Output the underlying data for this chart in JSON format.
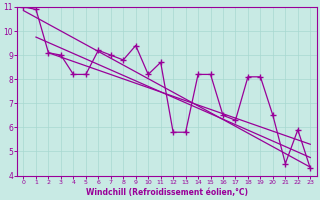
{
  "xlabel": "Windchill (Refroidissement éolien,°C)",
  "xlim": [
    -0.5,
    23.5
  ],
  "ylim": [
    4,
    11
  ],
  "xticks": [
    0,
    1,
    2,
    3,
    4,
    5,
    6,
    7,
    8,
    9,
    10,
    11,
    12,
    13,
    14,
    15,
    16,
    17,
    18,
    19,
    20,
    21,
    22,
    23
  ],
  "yticks": [
    4,
    5,
    6,
    7,
    8,
    9,
    10,
    11
  ],
  "bg_color": "#c8eae4",
  "line_color": "#990099",
  "grid_color": "#a8d8d0",
  "data_x": [
    0,
    1,
    2,
    3,
    4,
    5,
    6,
    7,
    8,
    9,
    10,
    11,
    12,
    13,
    14,
    15,
    16,
    17,
    18,
    19,
    20,
    21,
    22,
    23
  ],
  "data_y": [
    11.0,
    10.9,
    9.1,
    9.0,
    8.2,
    8.2,
    9.2,
    9.0,
    8.8,
    9.4,
    8.2,
    8.7,
    5.8,
    5.8,
    8.2,
    8.2,
    6.5,
    6.3,
    8.1,
    8.1,
    6.5,
    4.5,
    5.9,
    4.3
  ],
  "reg_line1_x": [
    0,
    23
  ],
  "reg_line1_y": [
    10.85,
    4.35
  ],
  "reg_line2_x": [
    1,
    23
  ],
  "reg_line2_y": [
    9.75,
    4.75
  ],
  "reg_line3_x": [
    2,
    23
  ],
  "reg_line3_y": [
    9.1,
    5.3
  ]
}
